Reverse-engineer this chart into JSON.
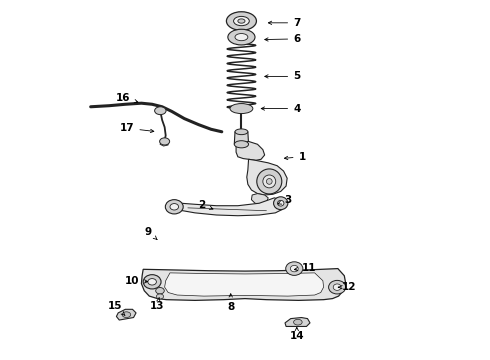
{
  "background_color": "#ffffff",
  "line_color": "#222222",
  "label_color": "#000000",
  "label_fontsize": 7.5,
  "figsize": [
    4.9,
    3.6
  ],
  "dpi": 100,
  "labels": {
    "7": [
      0.645,
      0.94,
      0.555,
      0.94
    ],
    "6": [
      0.645,
      0.895,
      0.545,
      0.893
    ],
    "5": [
      0.645,
      0.79,
      0.545,
      0.79
    ],
    "4": [
      0.645,
      0.7,
      0.535,
      0.7
    ],
    "1": [
      0.66,
      0.565,
      0.6,
      0.56
    ],
    "16": [
      0.16,
      0.73,
      0.21,
      0.715
    ],
    "17": [
      0.17,
      0.645,
      0.255,
      0.635
    ],
    "3": [
      0.62,
      0.445,
      0.59,
      0.432
    ],
    "2": [
      0.38,
      0.43,
      0.42,
      0.415
    ],
    "9": [
      0.23,
      0.355,
      0.255,
      0.332
    ],
    "11": [
      0.68,
      0.255,
      0.628,
      0.248
    ],
    "8": [
      0.46,
      0.145,
      0.46,
      0.192
    ],
    "12": [
      0.79,
      0.2,
      0.76,
      0.2
    ],
    "10": [
      0.185,
      0.218,
      0.238,
      0.215
    ],
    "15": [
      0.135,
      0.148,
      0.165,
      0.12
    ],
    "13": [
      0.255,
      0.148,
      0.26,
      0.172
    ],
    "14": [
      0.645,
      0.062,
      0.645,
      0.09
    ]
  }
}
